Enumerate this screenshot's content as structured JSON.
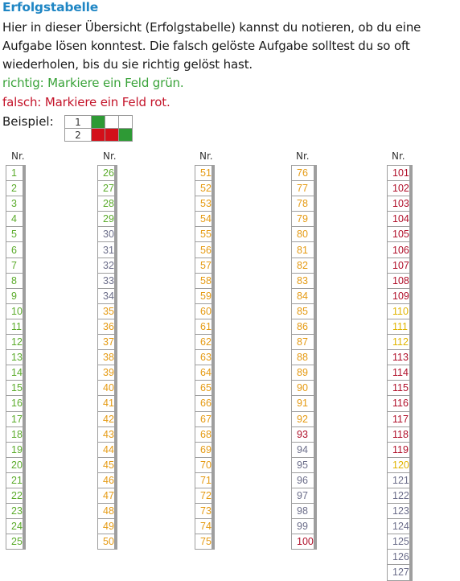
{
  "title": "Erfolgstabelle",
  "intro": [
    "Hier in dieser Übersicht (Erfolgstabelle) kannst du notieren, ob du eine",
    "Aufgabe lösen konntest. Die falsch gelöste Aufgabe solltest du so oft",
    "wiederholen, bis du sie richtig gelöst hast."
  ],
  "green_line": "richtig: Markiere ein Feld grün.",
  "red_line": "falsch: Markiere ein Feld rot.",
  "beispiel_label": "Beispiel:",
  "example": [
    {
      "num": "1",
      "cells": [
        "#2e9a35",
        "",
        ""
      ]
    },
    {
      "num": "2",
      "cells": [
        "#d3101a",
        "#d3101a",
        "#2e9a35"
      ]
    }
  ],
  "column_header": "Nr.",
  "colors": {
    "title": "#1f86c4",
    "green_text": "#3aa33a",
    "red_text": "#c4142a",
    "green_num": "#5aab2a",
    "gray_num": "#6c6e8a",
    "orange_num": "#e59a12",
    "red_num": "#b0102a",
    "yellow_num": "#e0b400"
  },
  "columns": [
    {
      "rows": [
        {
          "n": "1",
          "c": "green_num"
        },
        {
          "n": "2",
          "c": "green_num"
        },
        {
          "n": "3",
          "c": "green_num"
        },
        {
          "n": "4",
          "c": "green_num"
        },
        {
          "n": "5",
          "c": "green_num"
        },
        {
          "n": "6",
          "c": "green_num"
        },
        {
          "n": "7",
          "c": "green_num"
        },
        {
          "n": "8",
          "c": "green_num"
        },
        {
          "n": "9",
          "c": "green_num"
        },
        {
          "n": "10",
          "c": "green_num"
        },
        {
          "n": "11",
          "c": "green_num"
        },
        {
          "n": "12",
          "c": "green_num"
        },
        {
          "n": "13",
          "c": "green_num"
        },
        {
          "n": "14",
          "c": "green_num"
        },
        {
          "n": "15",
          "c": "green_num"
        },
        {
          "n": "16",
          "c": "green_num"
        },
        {
          "n": "17",
          "c": "green_num"
        },
        {
          "n": "18",
          "c": "green_num"
        },
        {
          "n": "19",
          "c": "green_num"
        },
        {
          "n": "20",
          "c": "green_num"
        },
        {
          "n": "21",
          "c": "green_num"
        },
        {
          "n": "22",
          "c": "green_num"
        },
        {
          "n": "23",
          "c": "green_num"
        },
        {
          "n": "24",
          "c": "green_num"
        },
        {
          "n": "25",
          "c": "green_num"
        }
      ]
    },
    {
      "rows": [
        {
          "n": "26",
          "c": "green_num"
        },
        {
          "n": "27",
          "c": "green_num"
        },
        {
          "n": "28",
          "c": "green_num"
        },
        {
          "n": "29",
          "c": "green_num"
        },
        {
          "n": "30",
          "c": "gray_num"
        },
        {
          "n": "31",
          "c": "gray_num"
        },
        {
          "n": "32",
          "c": "gray_num"
        },
        {
          "n": "33",
          "c": "gray_num"
        },
        {
          "n": "34",
          "c": "gray_num"
        },
        {
          "n": "35",
          "c": "orange_num"
        },
        {
          "n": "36",
          "c": "orange_num"
        },
        {
          "n": "37",
          "c": "orange_num"
        },
        {
          "n": "38",
          "c": "orange_num"
        },
        {
          "n": "39",
          "c": "orange_num"
        },
        {
          "n": "40",
          "c": "orange_num"
        },
        {
          "n": "41",
          "c": "orange_num"
        },
        {
          "n": "42",
          "c": "orange_num"
        },
        {
          "n": "43",
          "c": "orange_num"
        },
        {
          "n": "44",
          "c": "orange_num"
        },
        {
          "n": "45",
          "c": "orange_num"
        },
        {
          "n": "46",
          "c": "orange_num"
        },
        {
          "n": "47",
          "c": "orange_num"
        },
        {
          "n": "48",
          "c": "orange_num"
        },
        {
          "n": "49",
          "c": "orange_num"
        },
        {
          "n": "50",
          "c": "orange_num"
        }
      ]
    },
    {
      "rows": [
        {
          "n": "51",
          "c": "orange_num"
        },
        {
          "n": "52",
          "c": "orange_num"
        },
        {
          "n": "53",
          "c": "orange_num"
        },
        {
          "n": "54",
          "c": "orange_num"
        },
        {
          "n": "55",
          "c": "orange_num"
        },
        {
          "n": "56",
          "c": "orange_num"
        },
        {
          "n": "57",
          "c": "orange_num"
        },
        {
          "n": "58",
          "c": "orange_num"
        },
        {
          "n": "59",
          "c": "orange_num"
        },
        {
          "n": "60",
          "c": "orange_num"
        },
        {
          "n": "61",
          "c": "orange_num"
        },
        {
          "n": "62",
          "c": "orange_num"
        },
        {
          "n": "63",
          "c": "orange_num"
        },
        {
          "n": "64",
          "c": "orange_num"
        },
        {
          "n": "65",
          "c": "orange_num"
        },
        {
          "n": "66",
          "c": "orange_num"
        },
        {
          "n": "67",
          "c": "orange_num"
        },
        {
          "n": "68",
          "c": "orange_num"
        },
        {
          "n": "69",
          "c": "orange_num"
        },
        {
          "n": "70",
          "c": "orange_num"
        },
        {
          "n": "71",
          "c": "orange_num"
        },
        {
          "n": "72",
          "c": "orange_num"
        },
        {
          "n": "73",
          "c": "orange_num"
        },
        {
          "n": "74",
          "c": "orange_num"
        },
        {
          "n": "75",
          "c": "orange_num"
        }
      ]
    },
    {
      "rows": [
        {
          "n": "76",
          "c": "orange_num"
        },
        {
          "n": "77",
          "c": "orange_num"
        },
        {
          "n": "78",
          "c": "orange_num"
        },
        {
          "n": "79",
          "c": "orange_num"
        },
        {
          "n": "80",
          "c": "orange_num"
        },
        {
          "n": "81",
          "c": "orange_num"
        },
        {
          "n": "82",
          "c": "orange_num"
        },
        {
          "n": "83",
          "c": "orange_num"
        },
        {
          "n": "84",
          "c": "orange_num"
        },
        {
          "n": "85",
          "c": "orange_num"
        },
        {
          "n": "86",
          "c": "orange_num"
        },
        {
          "n": "87",
          "c": "orange_num"
        },
        {
          "n": "88",
          "c": "orange_num"
        },
        {
          "n": "89",
          "c": "orange_num"
        },
        {
          "n": "90",
          "c": "orange_num"
        },
        {
          "n": "91",
          "c": "orange_num"
        },
        {
          "n": "92",
          "c": "orange_num"
        },
        {
          "n": "93",
          "c": "red_num"
        },
        {
          "n": "94",
          "c": "gray_num"
        },
        {
          "n": "95",
          "c": "gray_num"
        },
        {
          "n": "96",
          "c": "gray_num"
        },
        {
          "n": "97",
          "c": "gray_num"
        },
        {
          "n": "98",
          "c": "gray_num"
        },
        {
          "n": "99",
          "c": "gray_num"
        },
        {
          "n": "100",
          "c": "red_num"
        }
      ]
    },
    {
      "rows": [
        {
          "n": "101",
          "c": "red_num"
        },
        {
          "n": "102",
          "c": "red_num"
        },
        {
          "n": "103",
          "c": "red_num"
        },
        {
          "n": "104",
          "c": "red_num"
        },
        {
          "n": "105",
          "c": "red_num"
        },
        {
          "n": "106",
          "c": "red_num"
        },
        {
          "n": "107",
          "c": "red_num"
        },
        {
          "n": "108",
          "c": "red_num"
        },
        {
          "n": "109",
          "c": "red_num"
        },
        {
          "n": "110",
          "c": "yellow_num"
        },
        {
          "n": "111",
          "c": "yellow_num"
        },
        {
          "n": "112",
          "c": "yellow_num"
        },
        {
          "n": "113",
          "c": "red_num"
        },
        {
          "n": "114",
          "c": "red_num"
        },
        {
          "n": "115",
          "c": "red_num"
        },
        {
          "n": "116",
          "c": "red_num"
        },
        {
          "n": "117",
          "c": "red_num"
        },
        {
          "n": "118",
          "c": "red_num"
        },
        {
          "n": "119",
          "c": "red_num"
        },
        {
          "n": "120",
          "c": "yellow_num"
        },
        {
          "n": "121",
          "c": "gray_num"
        },
        {
          "n": "122",
          "c": "gray_num"
        },
        {
          "n": "123",
          "c": "gray_num"
        },
        {
          "n": "124",
          "c": "gray_num"
        },
        {
          "n": "125",
          "c": "gray_num"
        },
        {
          "n": "126",
          "c": "gray_num"
        },
        {
          "n": "127",
          "c": "gray_num"
        }
      ]
    }
  ]
}
